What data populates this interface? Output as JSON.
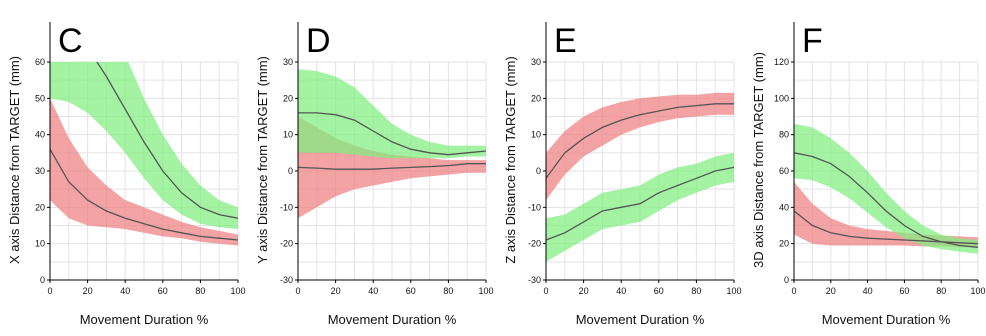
{
  "chart_data": [
    {
      "type": "line",
      "letter": "C",
      "xlabel": "Movement Duration %",
      "ylabel": "X axis Distance from TARGET (mm)",
      "xlim": [
        0,
        100
      ],
      "ylim": [
        0,
        60
      ],
      "xticks": [
        0,
        20,
        40,
        60,
        80,
        100
      ],
      "yticks": [
        0,
        10,
        20,
        30,
        40,
        50,
        60
      ],
      "grid": true,
      "series": [
        {
          "color": "#ef7f7f",
          "x": [
            0,
            10,
            20,
            30,
            40,
            50,
            60,
            70,
            80,
            90,
            100
          ],
          "mean": [
            36,
            27,
            22,
            19,
            17,
            15.5,
            14,
            13,
            12,
            11.5,
            11
          ],
          "lower": [
            22,
            17,
            15,
            14.5,
            14,
            13,
            12,
            11.5,
            10.5,
            10,
            9.5
          ],
          "upper": [
            50,
            39,
            31,
            26,
            22,
            20,
            18,
            16,
            14.5,
            13.5,
            12.5
          ]
        },
        {
          "color": "#7fef7f",
          "x": [
            0,
            10,
            20,
            30,
            40,
            50,
            60,
            70,
            80,
            90,
            100
          ],
          "mean": [
            75,
            70,
            64,
            56,
            47,
            38,
            30,
            24,
            20,
            18,
            17
          ],
          "lower": [
            50,
            49,
            46,
            41,
            35,
            28,
            22,
            18,
            15.5,
            14.5,
            14
          ],
          "upper": [
            100,
            95,
            85,
            75,
            62,
            50,
            40,
            32,
            26,
            22,
            20
          ]
        }
      ]
    },
    {
      "type": "line",
      "letter": "D",
      "xlabel": "Movement Duration %",
      "ylabel": "Y axis Distance from TARGET (mm)",
      "xlim": [
        0,
        100
      ],
      "ylim": [
        -30,
        30
      ],
      "xticks": [
        0,
        20,
        40,
        60,
        80,
        100
      ],
      "yticks": [
        -30,
        -20,
        -10,
        0,
        10,
        20,
        30
      ],
      "grid": true,
      "series": [
        {
          "color": "#ef7f7f",
          "x": [
            0,
            10,
            20,
            30,
            40,
            50,
            60,
            70,
            80,
            90,
            100
          ],
          "mean": [
            1,
            0.8,
            0.5,
            0.5,
            0.5,
            0.8,
            1,
            1.2,
            1.5,
            2,
            2
          ],
          "lower": [
            -13,
            -10,
            -7,
            -5,
            -4,
            -3,
            -2,
            -1.5,
            -1,
            -0.5,
            -0.5
          ],
          "upper": [
            15,
            12,
            9,
            7,
            5.5,
            4.5,
            4,
            3.5,
            3,
            3,
            3
          ]
        },
        {
          "color": "#7fef7f",
          "x": [
            0,
            10,
            20,
            30,
            40,
            50,
            60,
            70,
            80,
            90,
            100
          ],
          "mean": [
            16,
            16,
            15.5,
            14,
            11,
            8,
            6,
            5,
            4.5,
            5,
            5.5
          ],
          "lower": [
            5,
            5,
            5,
            4.5,
            4,
            3.5,
            3.5,
            3.5,
            3.5,
            4,
            4
          ],
          "upper": [
            28,
            27.5,
            26,
            23,
            18,
            13,
            10,
            8,
            7,
            7,
            7
          ]
        }
      ]
    },
    {
      "type": "line",
      "letter": "E",
      "xlabel": "Movement Duration %",
      "ylabel": "Z axis Distance from TARGET (mm)",
      "xlim": [
        0,
        100
      ],
      "ylim": [
        -30,
        30
      ],
      "xticks": [
        0,
        20,
        40,
        60,
        80,
        100
      ],
      "yticks": [
        -30,
        -20,
        -10,
        0,
        10,
        20,
        30
      ],
      "grid": true,
      "series": [
        {
          "color": "#ef7f7f",
          "x": [
            0,
            10,
            20,
            30,
            40,
            50,
            60,
            70,
            80,
            90,
            100
          ],
          "mean": [
            -2,
            5,
            9,
            12,
            14,
            15.5,
            16.5,
            17.5,
            18,
            18.5,
            18.5
          ],
          "lower": [
            -8,
            -1,
            4,
            7,
            10,
            12,
            13.5,
            14.5,
            15,
            15.5,
            15.5
          ],
          "upper": [
            5,
            11,
            15,
            17.5,
            19,
            20,
            20.5,
            21,
            21,
            21.5,
            21.5
          ]
        },
        {
          "color": "#7fef7f",
          "x": [
            0,
            10,
            20,
            30,
            40,
            50,
            60,
            70,
            80,
            90,
            100
          ],
          "mean": [
            -19,
            -17,
            -14,
            -11,
            -10,
            -9,
            -6,
            -4,
            -2,
            0,
            1
          ],
          "lower": [
            -25,
            -22,
            -19,
            -16,
            -15,
            -14,
            -11,
            -8,
            -6,
            -4,
            -3
          ],
          "upper": [
            -13,
            -12,
            -9,
            -6,
            -5,
            -4,
            -1,
            1,
            2,
            4,
            5
          ]
        }
      ]
    },
    {
      "type": "line",
      "letter": "F",
      "xlabel": "Movement Duration %",
      "ylabel": "3D axis Distance from TARGET (mm)",
      "xlim": [
        0,
        100
      ],
      "ylim": [
        0,
        120
      ],
      "xticks": [
        0,
        20,
        40,
        60,
        80,
        100
      ],
      "yticks": [
        0,
        20,
        40,
        60,
        80,
        100,
        120
      ],
      "grid": true,
      "series": [
        {
          "color": "#ef7f7f",
          "x": [
            0,
            10,
            20,
            30,
            40,
            50,
            60,
            70,
            80,
            90,
            100
          ],
          "mean": [
            38,
            30,
            26,
            24,
            23,
            22.5,
            22,
            21.5,
            21,
            20.5,
            20
          ],
          "lower": [
            25,
            20,
            19,
            19,
            19,
            19,
            19,
            18.5,
            18.5,
            18,
            18
          ],
          "upper": [
            54,
            42,
            34,
            30,
            28,
            27,
            26,
            25,
            24.5,
            24,
            23.5
          ]
        },
        {
          "color": "#7fef7f",
          "x": [
            0,
            10,
            20,
            30,
            40,
            50,
            60,
            70,
            80,
            90,
            100
          ],
          "mean": [
            70,
            68,
            64,
            57,
            48,
            38,
            30,
            24,
            21,
            19,
            18
          ],
          "lower": [
            56,
            55,
            51,
            45,
            37,
            29,
            23,
            19,
            17,
            15.5,
            14.5
          ],
          "upper": [
            86,
            84,
            78,
            70,
            60,
            48,
            38,
            30,
            25,
            23,
            22
          ]
        }
      ]
    }
  ]
}
